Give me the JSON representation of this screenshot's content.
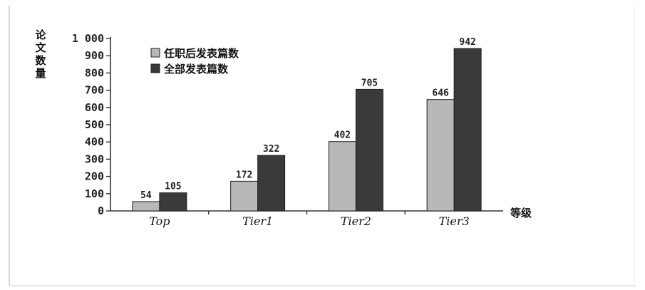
{
  "chart_data": {
    "type": "bar",
    "categories": [
      "Top",
      "Tier1",
      "Tier2",
      "Tier3"
    ],
    "series": [
      {
        "name": "任职后发表篇数",
        "values": [
          54,
          172,
          402,
          646
        ],
        "color": "#b8b8b8"
      },
      {
        "name": "全部发表篇数",
        "values": [
          105,
          322,
          705,
          942
        ],
        "color": "#3a3a3a"
      }
    ],
    "ylabel": "论文数量",
    "xlabel": "等级",
    "ylim": [
      0,
      1000
    ],
    "yticks": [
      0,
      100,
      200,
      300,
      400,
      500,
      600,
      700,
      800,
      900,
      1000
    ],
    "ytick_labels": [
      "0",
      "100",
      "200",
      "300",
      "400",
      "500",
      "600",
      "700",
      "800",
      "900",
      "1 000"
    ],
    "legend_position": "top-left",
    "grid": false
  }
}
